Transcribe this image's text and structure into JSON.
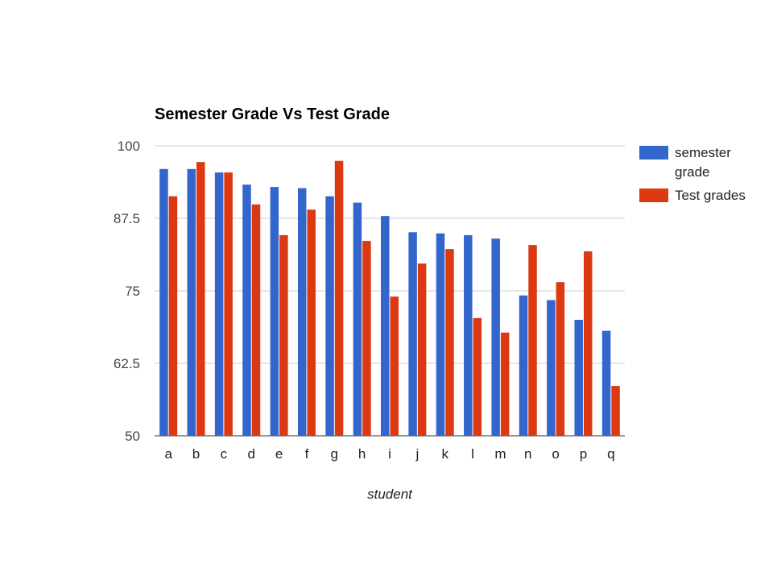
{
  "chart_data": {
    "type": "bar",
    "title": "Semester Grade Vs Test Grade",
    "xlabel": "student",
    "ylabel": "",
    "ylim": [
      50,
      100
    ],
    "yticks": [
      "50",
      "62.5",
      "75",
      "87.5",
      "100"
    ],
    "ytick_values": [
      50,
      62.5,
      75,
      87.5,
      100
    ],
    "grid": true,
    "legend_position": "right",
    "categories": [
      "a",
      "b",
      "c",
      "d",
      "e",
      "f",
      "g",
      "h",
      "i",
      "j",
      "k",
      "l",
      "m",
      "n",
      "o",
      "p",
      "q"
    ],
    "series": [
      {
        "name": "semester grade",
        "legend_lines": [
          "semester",
          "grade"
        ],
        "color": "#3366cc",
        "values": [
          96,
          96,
          95.4,
          93.3,
          92.9,
          92.7,
          91.3,
          90.2,
          87.9,
          85.1,
          84.9,
          84.6,
          84.0,
          74.2,
          73.4,
          70.0,
          68.1
        ]
      },
      {
        "name": "Test grades",
        "legend_lines": [
          "Test grades"
        ],
        "color": "#dc3912",
        "values": [
          91.3,
          97.2,
          95.4,
          89.9,
          84.6,
          89.0,
          97.4,
          83.6,
          74.0,
          79.7,
          82.2,
          70.3,
          67.8,
          82.9,
          76.5,
          81.8,
          58.6
        ]
      }
    ]
  }
}
